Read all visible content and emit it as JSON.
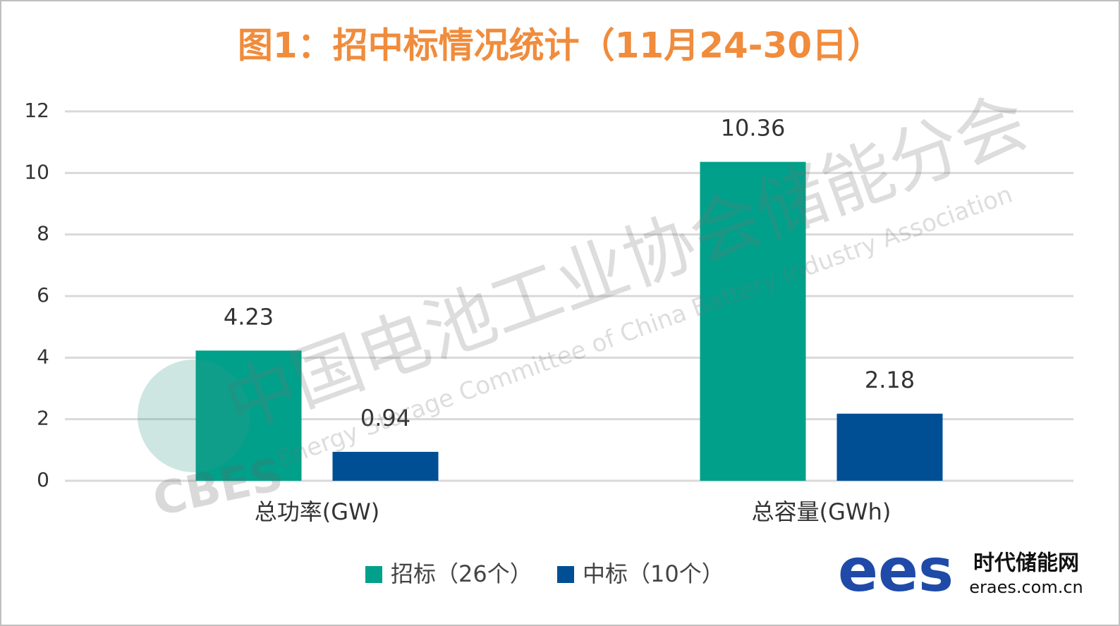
{
  "chart_data": {
    "type": "bar",
    "title": "图1：招中标情况统计（11月24-30日）",
    "categories": [
      "总功率(GW)",
      "总容量(GWh)"
    ],
    "series": [
      {
        "name": "招标（26个）",
        "color": "#00a08a",
        "values": [
          4.23,
          10.36
        ]
      },
      {
        "name": "中标（10个）",
        "color": "#004f94",
        "values": [
          0.94,
          2.18
        ]
      }
    ],
    "ylim": [
      0,
      12
    ],
    "yticks": [
      0,
      2,
      4,
      6,
      8,
      10,
      12
    ],
    "grid": true,
    "legend": "bottom",
    "watermark": {
      "cn": "中国电池工业协会储能分会",
      "en": "Energy Storage Committee of China Battery Industry Association",
      "logo": "CBES"
    },
    "branding": {
      "logo": "ees",
      "name": "时代储能网",
      "url": "eraes.com.cn"
    }
  }
}
